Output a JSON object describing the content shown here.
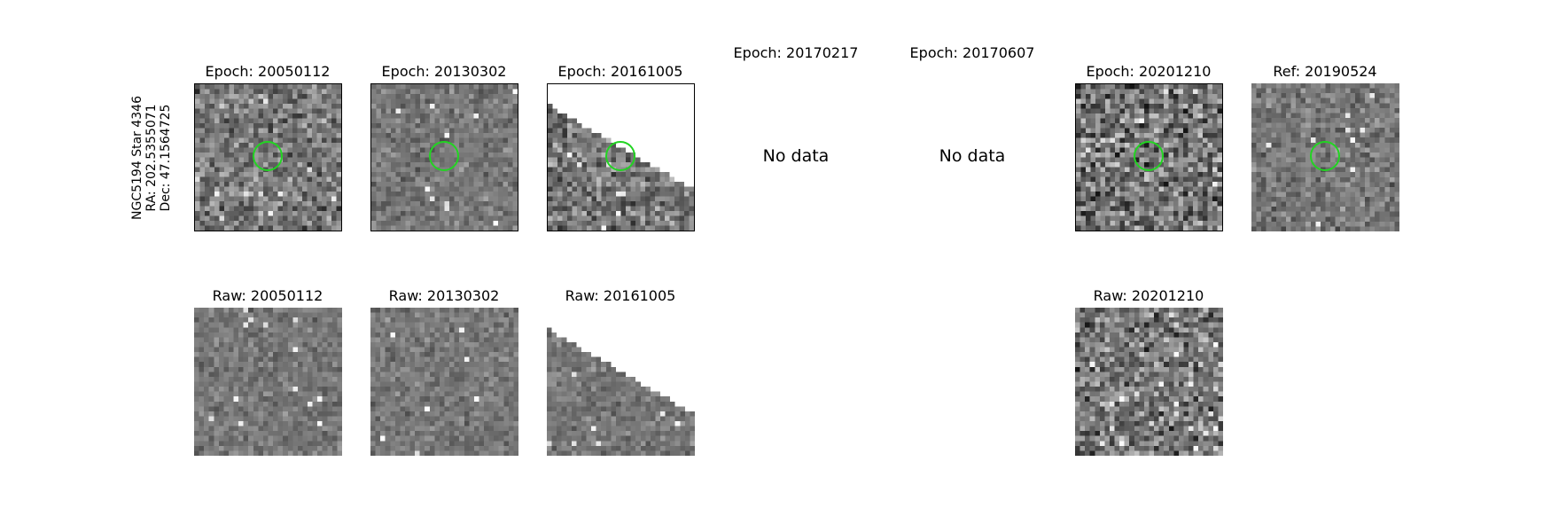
{
  "target": {
    "name_line": "NGC5194 Star 4346",
    "ra_line": "RA: 202.5355071",
    "dec_line": "Dec: 47.1564725"
  },
  "top_row": [
    {
      "title": "Epoch: 20050112",
      "status": "data",
      "marker": true
    },
    {
      "title": "Epoch: 20130302",
      "status": "data",
      "marker": true
    },
    {
      "title": "Epoch: 20161005",
      "status": "partial",
      "marker": true
    },
    {
      "title": "Epoch: 20170217",
      "status": "nodata",
      "nodata_text": "No data"
    },
    {
      "title": "Epoch: 20170607",
      "status": "nodata",
      "nodata_text": "No data"
    },
    {
      "title": "Epoch: 20201210",
      "status": "data",
      "marker": true
    },
    {
      "title": "Ref: 20190524",
      "status": "data",
      "marker": true
    }
  ],
  "bottom_row": [
    {
      "title": "Raw: 20050112",
      "status": "data"
    },
    {
      "title": "Raw: 20130302",
      "status": "data"
    },
    {
      "title": "Raw: 20161005",
      "status": "partial"
    },
    {
      "title": "Raw: 20201210",
      "status": "data"
    }
  ],
  "colors": {
    "marker": "#22d422",
    "frame": "#000000",
    "background": "#ffffff"
  }
}
